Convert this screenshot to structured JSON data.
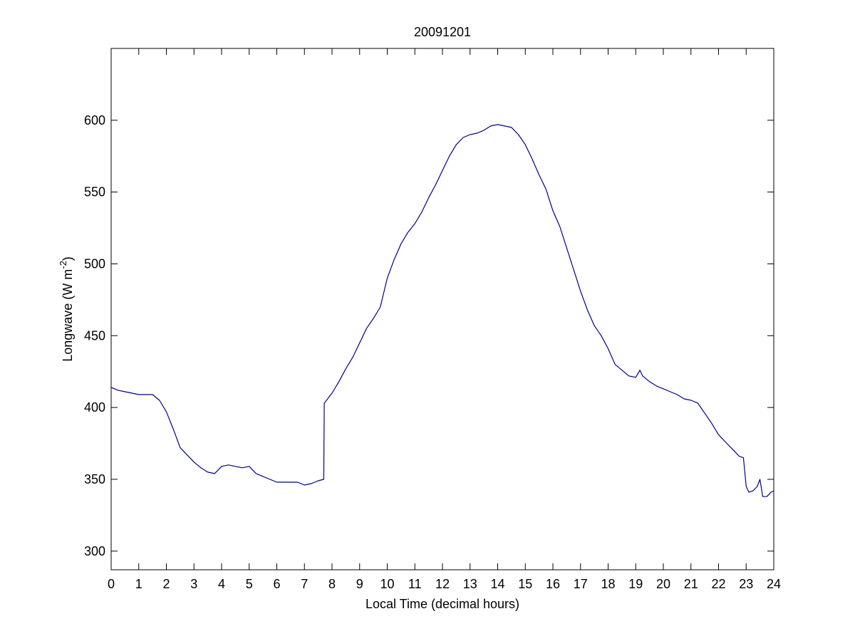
{
  "chart_data": {
    "type": "line",
    "title": "20091201",
    "xlabel": "Local Time (decimal hours)",
    "ylabel": {
      "main": "Longwave (W m",
      "sup": "-2",
      "close": ")"
    },
    "xlim": [
      0,
      24
    ],
    "ylim": [
      287,
      650
    ],
    "xticks": [
      0,
      1,
      2,
      3,
      4,
      5,
      6,
      7,
      8,
      9,
      10,
      11,
      12,
      13,
      14,
      15,
      16,
      17,
      18,
      19,
      20,
      21,
      22,
      23,
      24
    ],
    "yticks": [
      300,
      350,
      400,
      450,
      500,
      550,
      600
    ],
    "grid": false,
    "legend": "none",
    "line_color": "#00008B",
    "series": [
      {
        "x": [
          0,
          0.25,
          0.5,
          0.75,
          1.0,
          1.25,
          1.5,
          1.75,
          2.0,
          2.25,
          2.5,
          2.75,
          3.0,
          3.25,
          3.5,
          3.75,
          4.0,
          4.25,
          4.5,
          4.75,
          5.0,
          5.25,
          5.5,
          5.75,
          6.0,
          6.25,
          6.5,
          6.75,
          7.0,
          7.25,
          7.5,
          7.7,
          7.72,
          7.8,
          8.0,
          8.25,
          8.5,
          8.75,
          9.0,
          9.25,
          9.5,
          9.75,
          10.0,
          10.25,
          10.5,
          10.75,
          11.0,
          11.25,
          11.5,
          11.75,
          12.0,
          12.25,
          12.5,
          12.75,
          13.0,
          13.25,
          13.5,
          13.75,
          14.0,
          14.25,
          14.5,
          14.75,
          15.0,
          15.25,
          15.5,
          15.75,
          16.0,
          16.25,
          16.5,
          16.75,
          17.0,
          17.25,
          17.5,
          17.75,
          18.0,
          18.25,
          18.5,
          18.75,
          19.0,
          19.15,
          19.25,
          19.5,
          19.75,
          20.0,
          20.25,
          20.5,
          20.75,
          21.0,
          21.25,
          21.5,
          21.75,
          22.0,
          22.25,
          22.5,
          22.75,
          22.9,
          23.0,
          23.1,
          23.25,
          23.4,
          23.5,
          23.6,
          23.75,
          23.9,
          24.0
        ],
        "y": [
          414,
          412,
          411,
          410,
          409,
          409,
          409,
          405,
          397,
          385,
          372,
          367,
          362,
          358,
          355,
          354,
          359,
          360,
          359,
          358,
          359,
          354,
          352,
          350,
          348,
          348,
          348,
          348,
          346,
          347,
          349,
          350,
          403,
          405,
          410,
          418,
          427,
          435,
          445,
          455,
          462,
          470,
          490,
          503,
          514,
          522,
          528,
          536,
          546,
          555,
          565,
          575,
          583,
          588,
          590,
          591,
          593,
          596,
          597,
          596,
          595,
          590,
          583,
          573,
          562,
          552,
          537,
          526,
          511,
          496,
          481,
          468,
          457,
          450,
          441,
          430,
          426,
          422,
          421,
          426,
          422,
          418,
          415,
          413,
          411,
          409,
          406,
          405,
          403,
          396,
          389,
          381,
          376,
          371,
          366,
          365,
          345,
          341,
          342,
          345,
          350,
          338,
          338,
          341,
          342
        ]
      }
    ]
  }
}
